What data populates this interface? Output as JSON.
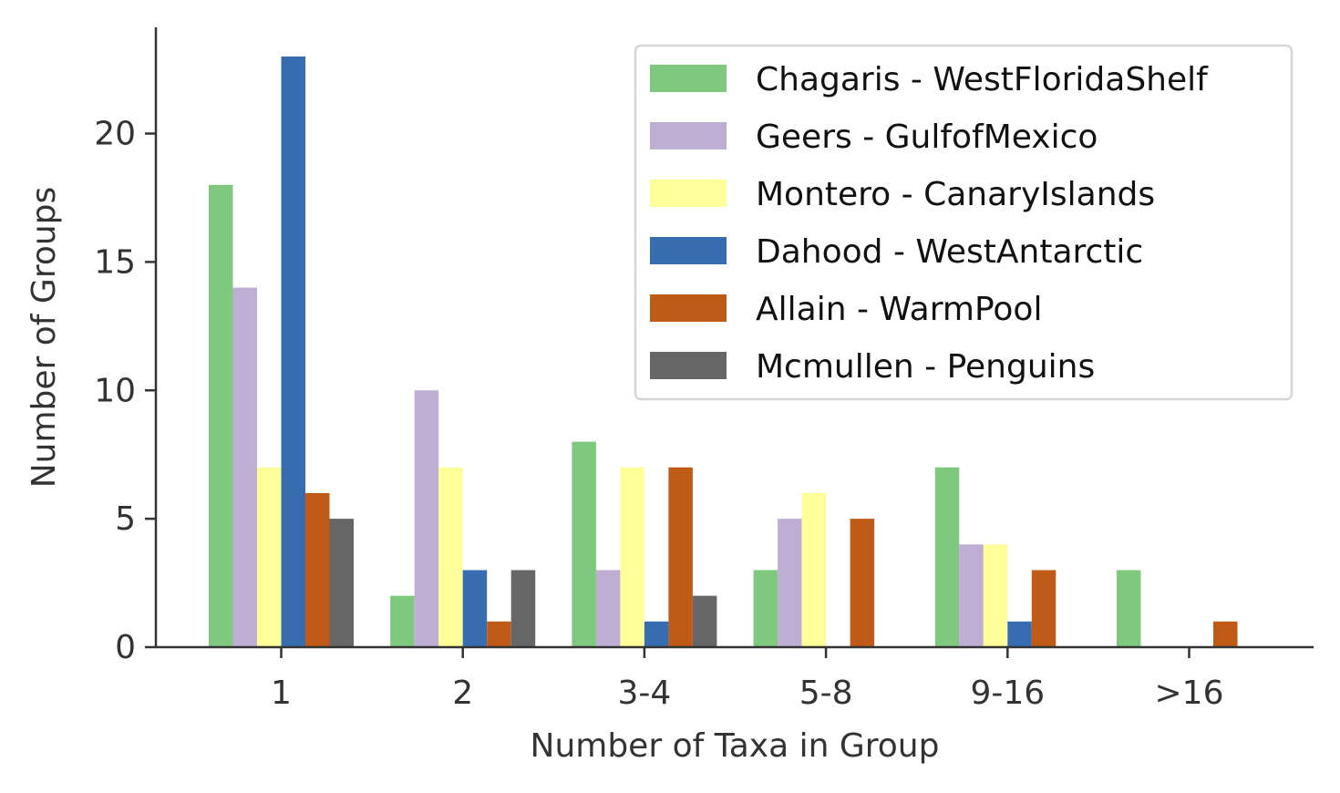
{
  "chart_data": {
    "type": "bar",
    "title": "",
    "xlabel": "Number of Taxa in Group",
    "ylabel": "Number of Groups",
    "categories": [
      "1",
      "2",
      "3-4",
      "5-8",
      "9-16",
      ">16"
    ],
    "ylim": [
      0,
      24
    ],
    "yticks": [
      0,
      5,
      10,
      15,
      20
    ],
    "grid": false,
    "legend_position": "top-right",
    "series": [
      {
        "name": "Chagaris - WestFloridaShelf",
        "color": "#7fc97f",
        "values": [
          18,
          2,
          8,
          3,
          7,
          3
        ]
      },
      {
        "name": "Geers - GulfofMexico",
        "color": "#beaed4",
        "values": [
          14,
          10,
          3,
          5,
          4,
          0
        ]
      },
      {
        "name": "Montero - CanaryIslands",
        "color": "#ffff99",
        "values": [
          7,
          7,
          7,
          6,
          4,
          0
        ]
      },
      {
        "name": "Dahood - WestAntarctic",
        "color": "#386cb0",
        "values": [
          23,
          3,
          1,
          0,
          1,
          0
        ]
      },
      {
        "name": "Allain - WarmPool",
        "color": "#bf5b17",
        "values": [
          6,
          1,
          7,
          5,
          3,
          1
        ]
      },
      {
        "name": "Mcmullen - Penguins",
        "color": "#666666",
        "values": [
          5,
          3,
          2,
          0,
          0,
          0
        ]
      }
    ]
  }
}
